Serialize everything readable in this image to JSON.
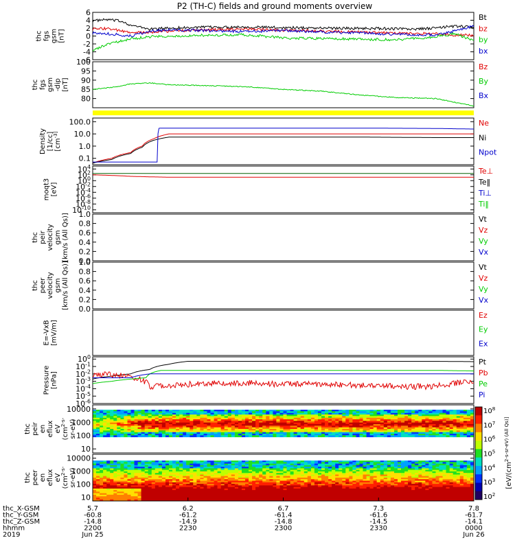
{
  "title": "P2 (TH-C) fields and ground moments overview",
  "colors": {
    "black": "#000000",
    "red": "#e00000",
    "green": "#00cc00",
    "blue": "#0000cc",
    "yellow": "#ffff00",
    "darkgreen": "#006000"
  },
  "chart_data": [
    {
      "type": "line",
      "panel_id": "fgs_gsm",
      "ylabel_lines": [
        "thc",
        "fgs",
        "gsm",
        "[nT]"
      ],
      "ylim": [
        -6,
        6.4
      ],
      "ytick_labels": [
        "6",
        "4",
        "2",
        "0",
        "-2",
        "-4",
        "-6"
      ],
      "legend": [
        {
          "label": "Bt",
          "color": "#000000"
        },
        {
          "label": "bz",
          "color": "#e00000"
        },
        {
          "label": "by",
          "color": "#00cc00"
        },
        {
          "label": "bx",
          "color": "#0000cc"
        }
      ],
      "series": [
        {
          "name": "Bt",
          "color": "#000000",
          "x": [
            0,
            0.04,
            0.08,
            0.1,
            0.15,
            0.2,
            0.3,
            0.4,
            0.5,
            0.6,
            0.7,
            0.8,
            0.85,
            0.9,
            0.95,
            1.0
          ],
          "values": [
            4.2,
            4.5,
            4.0,
            3.0,
            2.0,
            2.3,
            2.5,
            2.6,
            2.4,
            2.3,
            2.2,
            2.1,
            2.0,
            2.3,
            2.8,
            2.5
          ]
        },
        {
          "name": "bz",
          "color": "#e00000",
          "x": [
            0,
            0.04,
            0.1,
            0.15,
            0.2,
            0.3,
            0.4,
            0.5,
            0.6,
            0.7,
            0.8,
            0.9,
            0.95,
            1.0
          ],
          "values": [
            2.0,
            2.2,
            1.0,
            1.2,
            1.5,
            1.8,
            2.0,
            1.7,
            1.5,
            1.2,
            1.0,
            0.8,
            0.5,
            0.4
          ]
        },
        {
          "name": "by",
          "color": "#00cc00",
          "x": [
            0,
            0.04,
            0.1,
            0.15,
            0.2,
            0.3,
            0.4,
            0.5,
            0.6,
            0.7,
            0.8,
            0.9,
            0.95,
            1.0
          ],
          "values": [
            -3.5,
            -2.0,
            -0.5,
            0.0,
            0.2,
            0.4,
            0.5,
            -0.3,
            -0.5,
            -0.6,
            -0.8,
            0.0,
            0.8,
            -1.0
          ]
        },
        {
          "name": "bx",
          "color": "#0000cc",
          "x": [
            0,
            0.04,
            0.1,
            0.15,
            0.2,
            0.3,
            0.4,
            0.5,
            0.6,
            0.7,
            0.8,
            0.9,
            0.95,
            1.0
          ],
          "values": [
            1.0,
            0.8,
            0.2,
            1.5,
            1.8,
            1.6,
            1.4,
            1.6,
            1.3,
            1.0,
            0.6,
            0.5,
            1.5,
            2.8
          ]
        }
      ]
    },
    {
      "type": "line",
      "panel_id": "fgs_gsm_dip",
      "ylabel_lines": [
        "thc",
        "fgs",
        "gsm",
        "-dip",
        "[nT]"
      ],
      "ylim": [
        75,
        100
      ],
      "ytick_labels": [
        "100",
        "95",
        "90",
        "85",
        "80"
      ],
      "ytick_values": [
        100,
        95,
        90,
        85,
        80
      ],
      "legend": [
        {
          "label": "Bz",
          "color": "#e00000"
        },
        {
          "label": "By",
          "color": "#00cc00"
        },
        {
          "label": "Bx",
          "color": "#0000cc"
        }
      ],
      "series": [
        {
          "name": "By",
          "color": "#00cc00",
          "x": [
            0,
            0.05,
            0.1,
            0.15,
            0.2,
            0.3,
            0.4,
            0.5,
            0.6,
            0.7,
            0.8,
            0.9,
            0.95,
            1.0
          ],
          "values": [
            85,
            86,
            88,
            88.5,
            87.5,
            87,
            86.5,
            85,
            84,
            82,
            80.5,
            80,
            78,
            76
          ]
        }
      ]
    },
    {
      "type": "line",
      "panel_id": "density",
      "ylabel_lines": [
        "Density",
        "[1/cc]",
        "[cm^-3]"
      ],
      "yscale": "log",
      "ylim": [
        0.03,
        200
      ],
      "ytick_labels": [
        "100.0",
        "10.0",
        "1.0",
        "0.1"
      ],
      "ytick_values": [
        100,
        10,
        1,
        0.1
      ],
      "legend": [
        {
          "label": "Ne",
          "color": "#e00000"
        },
        {
          "label": "Ni",
          "color": "#000000"
        },
        {
          "label": "Npot",
          "color": "#0000cc"
        }
      ],
      "series": [
        {
          "name": "Ne",
          "color": "#e00000",
          "x": [
            0,
            0.05,
            0.1,
            0.13,
            0.16,
            0.2,
            0.3,
            0.5,
            0.7,
            0.9,
            1.0
          ],
          "values": [
            0.04,
            0.1,
            0.3,
            1.0,
            4.0,
            10,
            10,
            10,
            10,
            10,
            10
          ]
        },
        {
          "name": "Ni",
          "color": "#000000",
          "x": [
            0,
            0.05,
            0.1,
            0.13,
            0.16,
            0.2,
            0.3,
            0.5,
            0.7,
            0.9,
            1.0
          ],
          "values": [
            0.04,
            0.08,
            0.25,
            0.8,
            3.0,
            5.5,
            5.5,
            5.5,
            5.5,
            5.0,
            5.0
          ]
        },
        {
          "name": "Npot",
          "color": "#0000cc",
          "x": [
            0,
            0.17,
            0.174,
            0.3,
            0.5,
            0.7,
            0.9,
            1.0
          ],
          "values": [
            0.05,
            0.05,
            30,
            30,
            30,
            30,
            28,
            25
          ]
        }
      ]
    },
    {
      "type": "line",
      "panel_id": "temperature",
      "ylabel_lines": [
        "moqt3",
        "[eV]"
      ],
      "yscale": "log",
      "ylim": [
        1e-11,
        100000.0
      ],
      "ytick_labels": [
        "10^4",
        "10^2",
        "10^0",
        "10^-2",
        "10^-4",
        "10^-6",
        "10^-8",
        "10^-10"
      ],
      "ytick_values": [
        10000.0,
        100.0,
        1,
        0.01,
        0.0001,
        1e-06,
        1e-08,
        1e-10
      ],
      "legend": [
        {
          "label": "Te⊥",
          "color": "#e00000"
        },
        {
          "label": "Te‖",
          "color": "#000000"
        },
        {
          "label": "Ti⊥",
          "color": "#0000cc"
        },
        {
          "label": "Ti‖",
          "color": "#00cc00"
        }
      ],
      "series": [
        {
          "name": "Te⊥",
          "color": "#e00000",
          "x": [
            0,
            0.05,
            0.1,
            0.15,
            0.2,
            0.5,
            1.0
          ],
          "values": [
            100,
            60,
            30,
            20,
            15,
            15,
            15
          ]
        },
        {
          "name": "Ti",
          "color": "#006000",
          "x": [
            0,
            1.0
          ],
          "values": [
            300,
            300
          ]
        }
      ]
    },
    {
      "type": "line",
      "panel_id": "peir_velocity",
      "ylabel_lines": [
        "thc",
        "peir",
        "velocity",
        "gsm",
        "[km/s (All Qs)]"
      ],
      "ylim": [
        0,
        1
      ],
      "ytick_labels": [
        "1.0",
        "0.8",
        "0.6",
        "0.4",
        "0.2",
        "0.0"
      ],
      "legend": [
        {
          "label": "Vt",
          "color": "#000000"
        },
        {
          "label": "Vz",
          "color": "#e00000"
        },
        {
          "label": "Vy",
          "color": "#00cc00"
        },
        {
          "label": "Vx",
          "color": "#0000cc"
        }
      ]
    },
    {
      "type": "line",
      "panel_id": "peer_velocity",
      "ylabel_lines": [
        "thc",
        "peer",
        "velocity",
        "gsm",
        "[km/s (All Qs)]"
      ],
      "ylim": [
        0,
        1
      ],
      "ytick_labels": [
        "1.0",
        "0.8",
        "0.6",
        "0.4",
        "0.2",
        "0.0"
      ],
      "legend": [
        {
          "label": "Vt",
          "color": "#000000"
        },
        {
          "label": "Vz",
          "color": "#e00000"
        },
        {
          "label": "Vy",
          "color": "#00cc00"
        },
        {
          "label": "Vx",
          "color": "#0000cc"
        }
      ]
    },
    {
      "type": "line",
      "panel_id": "efield",
      "ylabel_lines": [
        "E=-VxB",
        "[mV/m]"
      ],
      "legend": [
        {
          "label": "Ez",
          "color": "#e00000"
        },
        {
          "label": "Ey",
          "color": "#00cc00"
        },
        {
          "label": "Ex",
          "color": "#0000cc"
        }
      ]
    },
    {
      "type": "line",
      "panel_id": "pressure",
      "ylabel_lines": [
        "Pressure",
        "[nPa]"
      ],
      "yscale": "log",
      "ylim": [
        1e-06,
        2
      ],
      "ytick_labels": [
        "10^0",
        "10^-1",
        "10^-2",
        "10^-3",
        "10^-4",
        "10^-5",
        "10^-6"
      ],
      "ytick_values": [
        1,
        0.1,
        0.01,
        0.001,
        0.0001,
        1e-05,
        1e-06
      ],
      "legend": [
        {
          "label": "Pt",
          "color": "#000000"
        },
        {
          "label": "Pb",
          "color": "#e00000"
        },
        {
          "label": "Pe",
          "color": "#00cc00"
        },
        {
          "label": "Pi",
          "color": "#0000cc"
        }
      ],
      "series": [
        {
          "name": "Pt",
          "color": "#000000",
          "x": [
            0,
            0.05,
            0.1,
            0.15,
            0.2,
            0.25,
            0.3,
            0.5,
            0.7,
            0.9,
            1.0
          ],
          "values": [
            0.002,
            0.005,
            0.01,
            0.04,
            0.2,
            0.5,
            0.5,
            0.5,
            0.5,
            0.5,
            0.45
          ]
        },
        {
          "name": "Pb",
          "color": "#e00000",
          "x": [
            0,
            0.05,
            0.1,
            0.15,
            0.2,
            0.3,
            0.4,
            0.5,
            0.6,
            0.7,
            0.8,
            0.9,
            0.95,
            1.0
          ],
          "values": [
            0.01,
            0.008,
            0.003,
            0.0002,
            0.0003,
            0.0005,
            0.0006,
            0.0004,
            0.0004,
            0.0003,
            0.0002,
            0.0002,
            0.0005,
            0.001
          ]
        },
        {
          "name": "Pe",
          "color": "#00cc00",
          "x": [
            0,
            0.05,
            0.1,
            0.14,
            0.18,
            0.3,
            0.5,
            0.7,
            0.9,
            1.0
          ],
          "values": [
            0.0005,
            0.001,
            0.002,
            0.003,
            0.03,
            0.03,
            0.03,
            0.03,
            0.03,
            0.025
          ]
        },
        {
          "name": "Pi",
          "color": "#0000cc",
          "x": [
            0,
            0.1,
            0.15
          ],
          "values": [
            0.003,
            0.003,
            0.01
          ]
        }
      ]
    },
    {
      "type": "heatmap",
      "panel_id": "peir_eflux",
      "ylabel_lines": [
        "thc",
        "peir",
        "en",
        "eflux",
        "eV",
        "(cm^2-s-",
        "sr-eV)"
      ],
      "yscale": "log",
      "ylim": [
        5,
        20000
      ],
      "ytick_labels": [
        "10000",
        "1000",
        "100",
        "10"
      ],
      "ytick_values": [
        10000,
        1000,
        100,
        10
      ]
    },
    {
      "type": "heatmap",
      "panel_id": "peer_eflux",
      "ylabel_lines": [
        "thc",
        "peer",
        "en",
        "eflux",
        "eV",
        "(cm^2-s-",
        "sr-eV)"
      ],
      "yscale": "log",
      "ylim": [
        5,
        20000
      ],
      "ytick_labels": [
        "10000",
        "1000",
        "100",
        "10"
      ],
      "ytick_values": [
        10000,
        1000,
        100,
        10
      ]
    }
  ],
  "colorbar": {
    "label": "[eV/(cm^2-s-sr-eV) (All Qs)]",
    "tick_labels": [
      "10^8",
      "10^7",
      "10^6",
      "10^5",
      "10^4",
      "10^3",
      "10^2"
    ]
  },
  "time_axis": {
    "row_labels": [
      "thc_X-GSM",
      "thc_Y-GSM",
      "thc_Z-GSM",
      "hhmm",
      "2019"
    ],
    "ticks": [
      {
        "x": 0.0,
        "values": [
          "5.7",
          "-60.8",
          "-14.8",
          "2200",
          "Jun 25"
        ]
      },
      {
        "x": 0.25,
        "values": [
          "6.2",
          "-61.2",
          "-14.9",
          "2230",
          ""
        ]
      },
      {
        "x": 0.5,
        "values": [
          "6.7",
          "-61.4",
          "-14.8",
          "2300",
          ""
        ]
      },
      {
        "x": 0.75,
        "values": [
          "7.3",
          "-61.6",
          "-14.5",
          "2330",
          ""
        ]
      },
      {
        "x": 1.0,
        "values": [
          "7.8",
          "-61.7",
          "-14.1",
          "0000",
          "Jun 26"
        ]
      }
    ]
  }
}
